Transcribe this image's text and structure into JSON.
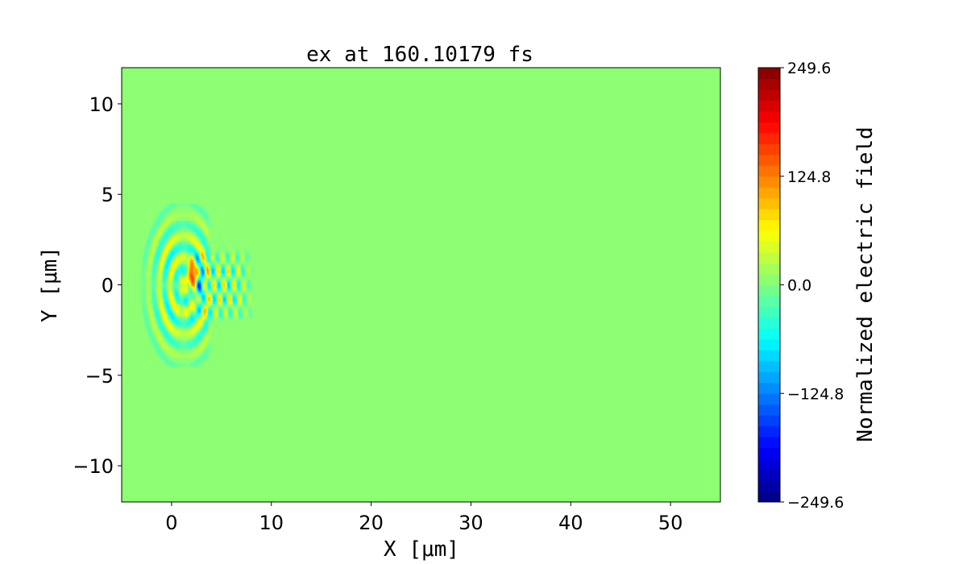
{
  "chart_data": {
    "type": "heatmap",
    "title": "ex at 160.10179 fs",
    "xlabel": "X [μm]",
    "ylabel": "Y [μm]",
    "xlim": [
      -5,
      55
    ],
    "ylim": [
      -12,
      12
    ],
    "xticks": [
      "0",
      "10",
      "20",
      "30",
      "40",
      "50"
    ],
    "xtick_values": [
      0,
      10,
      20,
      30,
      40,
      50
    ],
    "yticks": [
      "−10",
      "−5",
      "0",
      "5",
      "10"
    ],
    "ytick_values": [
      -10,
      -5,
      0,
      5,
      10
    ],
    "colormap": "jet",
    "colorbar_levels": 40,
    "clim": [
      -249.6,
      249.6
    ],
    "colorbar_label": "Normalized electric field",
    "colorbar_ticks": [
      "249.6",
      "124.8",
      "0.0",
      "−124.8",
      "−249.6"
    ],
    "colorbar_tick_values": [
      249.6,
      124.8,
      0.0,
      -124.8,
      -249.6
    ],
    "background_value": 0.0,
    "field_region": {
      "x": [
        -5,
        8
      ],
      "y": [
        -4.5,
        4.5
      ]
    },
    "peak": {
      "x": 2,
      "y": 0.5,
      "value": 240
    }
  }
}
